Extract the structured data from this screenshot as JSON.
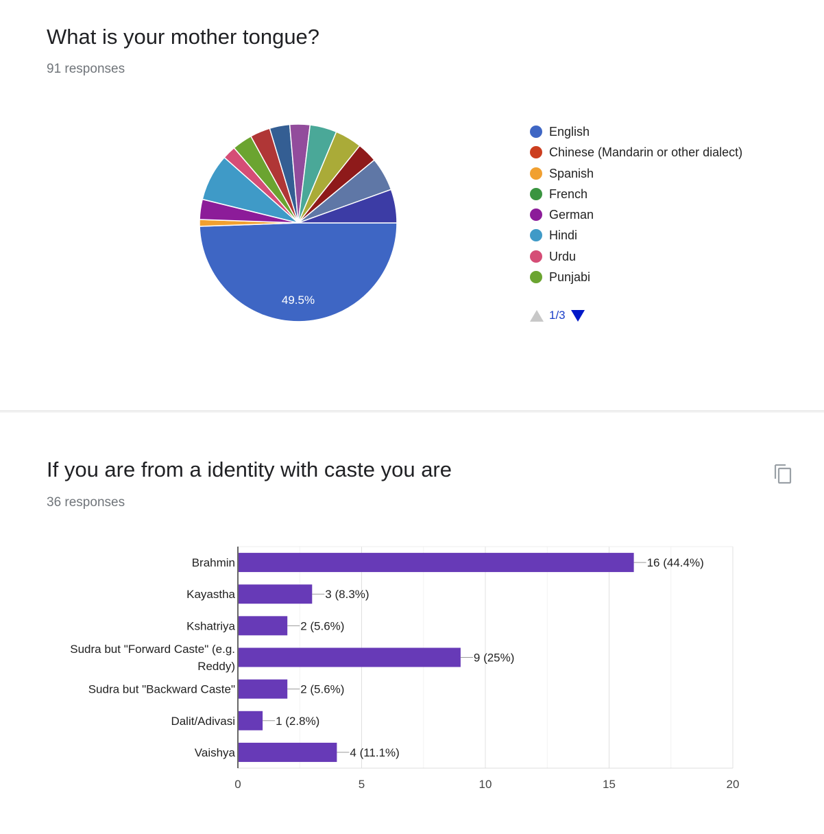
{
  "pie_question": {
    "title": "What is your mother tongue?",
    "responses": "91 responses",
    "slice_label": "49.5%",
    "pager": "1/3"
  },
  "bar_question": {
    "title": "If you are from a identity with caste you are",
    "responses": "36 responses"
  },
  "icons": {
    "copy": "copy-icon",
    "pager_up": "triangle-up-icon",
    "pager_down": "triangle-down-icon"
  },
  "chart_data": [
    {
      "type": "pie",
      "total": 91,
      "legend_visible": [
        "English",
        "Chinese (Mandarin or other dialect)",
        "Spanish",
        "French",
        "German",
        "Hindi",
        "Urdu",
        "Punjabi"
      ],
      "slices": [
        {
          "name": "English",
          "value": 45,
          "percent_label": "49.5%",
          "color": "#3e66c4"
        },
        {
          "name": "Spanish",
          "value": 1,
          "color": "#f1a030"
        },
        {
          "name": "German",
          "value": 3,
          "color": "#8c1c99"
        },
        {
          "name": "Hindi",
          "value": 7,
          "color": "#3f9ac7"
        },
        {
          "name": "Urdu",
          "value": 2,
          "color": "#d54d76"
        },
        {
          "name": "Punjabi",
          "value": 3,
          "color": "#6ba430"
        },
        {
          "value": 3,
          "color": "#b03636"
        },
        {
          "value": 3,
          "color": "#345e93"
        },
        {
          "value": 3,
          "color": "#924c9c"
        },
        {
          "value": 4,
          "color": "#4aa898"
        },
        {
          "value": 4,
          "color": "#aaab38"
        },
        {
          "value": 3,
          "color": "#8e1a1a"
        },
        {
          "value": 5,
          "color": "#5f77a6"
        },
        {
          "value": 5,
          "color": "#3c3ca5"
        }
      ],
      "legend_colors": [
        "#3e66c4",
        "#cc3e1f",
        "#f1a030",
        "#3a9440",
        "#8c1c99",
        "#3f9ac7",
        "#d54d76",
        "#6ba430"
      ]
    },
    {
      "type": "bar",
      "orientation": "horizontal",
      "categories": [
        "Brahmin",
        "Kayastha",
        "Kshatriya",
        "Sudra but \"Forward Caste\" (e.g. Reddy)",
        "Sudra but \"Backward Caste\"",
        "Dalit/Adivasi",
        "Vaishya"
      ],
      "category_lines": [
        [
          "Brahmin"
        ],
        [
          "Kayastha"
        ],
        [
          "Kshatriya"
        ],
        [
          "Sudra but \"Forward Caste\" (e.g.",
          "Reddy)"
        ],
        [
          "Sudra but \"Backward Caste\""
        ],
        [
          "Dalit/Adivasi"
        ],
        [
          "Vaishya"
        ]
      ],
      "values": [
        16,
        3,
        2,
        9,
        2,
        1,
        4
      ],
      "labels": [
        "16 (44.4%)",
        "3 (8.3%)",
        "2 (5.6%)",
        "9 (25%)",
        "2 (5.6%)",
        "1 (2.8%)",
        "4 (11.1%)"
      ],
      "xlim": [
        0,
        20
      ],
      "xticks": [
        "0",
        "5",
        "10",
        "15",
        "20"
      ],
      "xtick_values": [
        0,
        5,
        10,
        15,
        20
      ],
      "grid": true,
      "color": "#673ab7"
    }
  ]
}
